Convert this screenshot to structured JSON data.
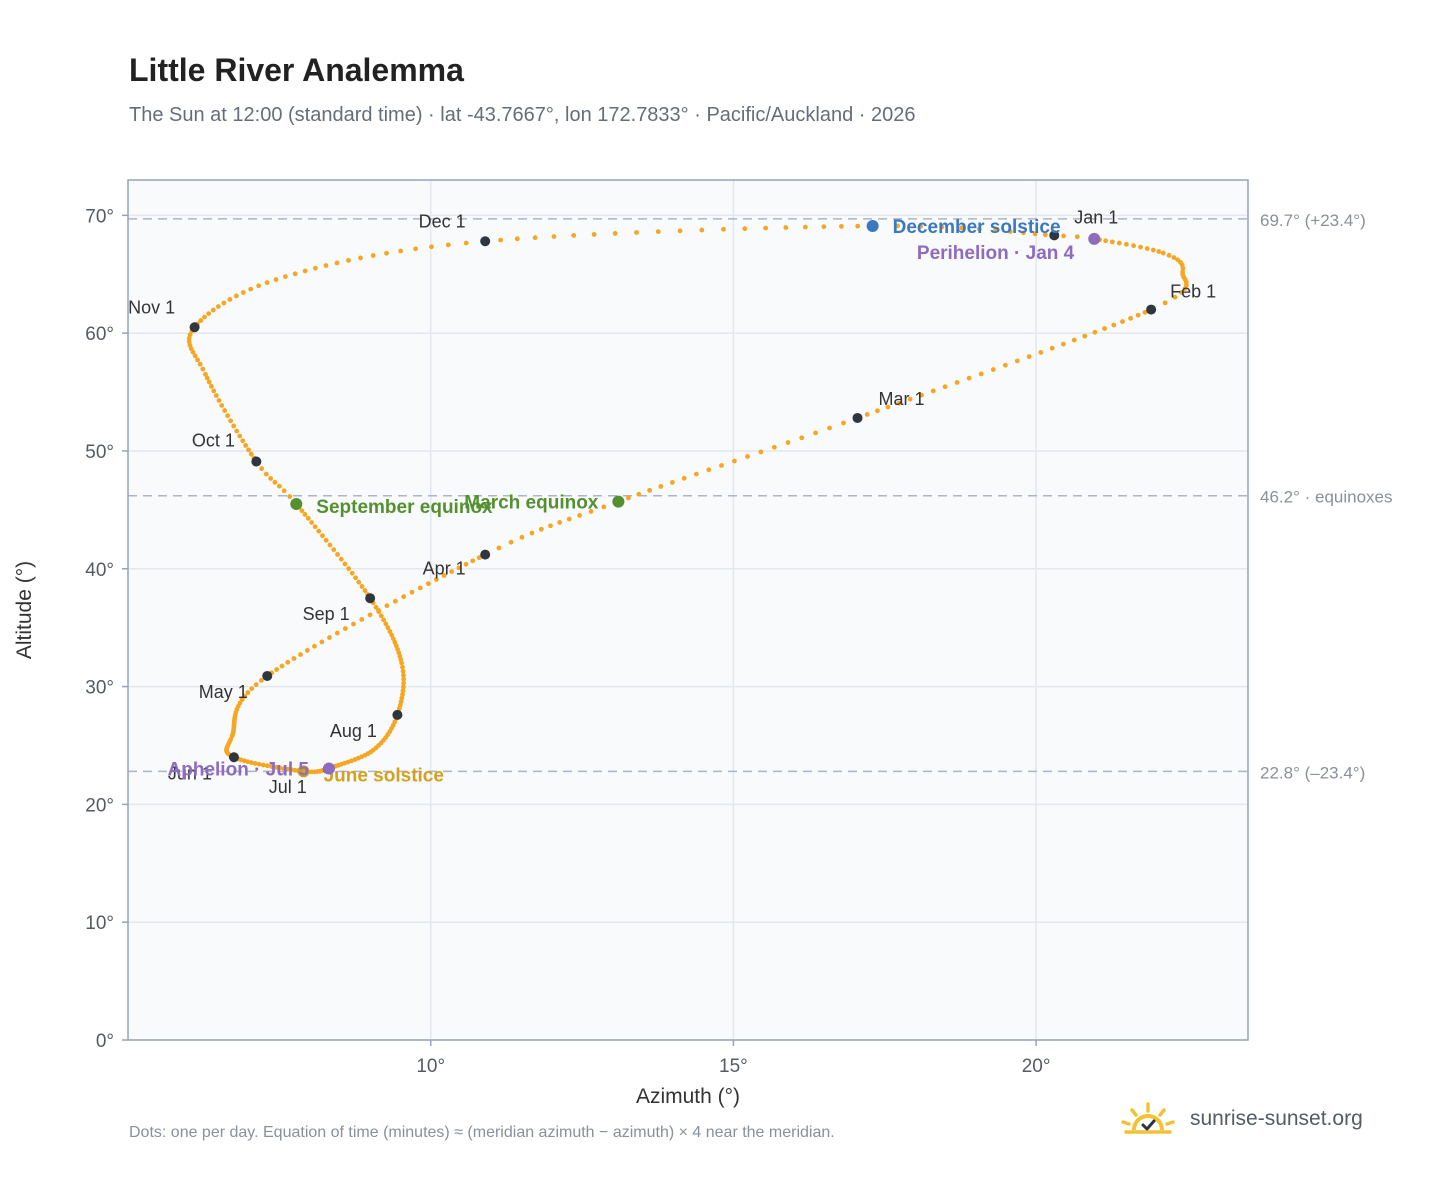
{
  "chart_data": {
    "type": "scatter",
    "title": "Little River Analemma",
    "subtitle": "The Sun at 12:00 (standard time) · lat -43.7667°, lon 172.7833° · Pacific/Auckland · 2026",
    "xlabel": "Azimuth (°)",
    "ylabel": "Altitude (°)",
    "xlim": [
      5.0,
      23.5
    ],
    "ylim": [
      0,
      73
    ],
    "x_ticks": [
      10,
      15,
      20
    ],
    "x_tick_labels": [
      "10°",
      "15°",
      "20°"
    ],
    "y_ticks": [
      0,
      10,
      20,
      30,
      40,
      50,
      60,
      70
    ],
    "y_tick_labels": [
      "0°",
      "10°",
      "20°",
      "30°",
      "40°",
      "50°",
      "60°",
      "70°"
    ],
    "grid": true,
    "reference_lines": [
      {
        "y": 69.7,
        "label": "69.7° (+23.4°)"
      },
      {
        "y": 46.2,
        "label": "46.2° · equinoxes"
      },
      {
        "y": 22.8,
        "label": "22.8° (–23.4°)"
      }
    ],
    "series_color": "#f5a623",
    "path_anchors": [
      {
        "day": 1,
        "x": 20.3,
        "y": 68.3
      },
      {
        "day": 4,
        "x": 20.96,
        "y": 68.0
      },
      {
        "day": 15,
        "x": 22.1,
        "y": 66.8
      },
      {
        "day": 22,
        "x": 22.42,
        "y": 65.2
      },
      {
        "day": 32,
        "x": 21.9,
        "y": 62.0
      },
      {
        "day": 60,
        "x": 17.05,
        "y": 52.8
      },
      {
        "day": 79,
        "x": 13.1,
        "y": 45.7
      },
      {
        "day": 91,
        "x": 10.9,
        "y": 41.2
      },
      {
        "day": 121,
        "x": 7.3,
        "y": 30.9
      },
      {
        "day": 141,
        "x": 6.72,
        "y": 25.8
      },
      {
        "day": 152,
        "x": 6.75,
        "y": 24.0
      },
      {
        "day": 172,
        "x": 7.9,
        "y": 22.8
      },
      {
        "day": 182,
        "x": 8.3,
        "y": 23.0
      },
      {
        "day": 186,
        "x": 8.32,
        "y": 23.05
      },
      {
        "day": 201,
        "x": 9.05,
        "y": 24.6
      },
      {
        "day": 213,
        "x": 9.45,
        "y": 27.6
      },
      {
        "day": 227,
        "x": 9.52,
        "y": 32.0
      },
      {
        "day": 244,
        "x": 9.0,
        "y": 37.5
      },
      {
        "day": 266,
        "x": 7.78,
        "y": 45.5
      },
      {
        "day": 274,
        "x": 7.12,
        "y": 49.1
      },
      {
        "day": 293,
        "x": 6.28,
        "y": 56.5
      },
      {
        "day": 305,
        "x": 6.1,
        "y": 60.5
      },
      {
        "day": 320,
        "x": 7.6,
        "y": 64.8
      },
      {
        "day": 335,
        "x": 10.9,
        "y": 67.8
      },
      {
        "day": 355,
        "x": 17.3,
        "y": 69.1
      },
      {
        "day": 366,
        "x": 20.3,
        "y": 68.3
      }
    ],
    "month_markers": [
      {
        "label": "Jan 1",
        "x": 20.3,
        "y": 68.3
      },
      {
        "label": "Feb 1",
        "x": 21.9,
        "y": 62.0
      },
      {
        "label": "Mar 1",
        "x": 17.05,
        "y": 52.8
      },
      {
        "label": "Apr 1",
        "x": 10.9,
        "y": 41.2
      },
      {
        "label": "May 1",
        "x": 7.3,
        "y": 30.9
      },
      {
        "label": "Jun 1",
        "x": 6.75,
        "y": 24.0
      },
      {
        "label": "Jul 1",
        "x": 8.3,
        "y": 23.0
      },
      {
        "label": "Aug 1",
        "x": 9.45,
        "y": 27.6
      },
      {
        "label": "Sep 1",
        "x": 9.0,
        "y": 37.5
      },
      {
        "label": "Oct 1",
        "x": 7.12,
        "y": 49.1
      },
      {
        "label": "Nov 1",
        "x": 6.1,
        "y": 60.5
      },
      {
        "label": "Dec 1",
        "x": 10.9,
        "y": 67.8
      }
    ],
    "events": [
      {
        "label": "December solstice",
        "x": 17.3,
        "y": 69.1,
        "color": "#3a78c2"
      },
      {
        "label": "Perihelion · Jan 4",
        "x": 20.96,
        "y": 68.0,
        "color": "#8e6bbf"
      },
      {
        "label": "March equinox",
        "x": 13.1,
        "y": 45.7,
        "color": "#559030"
      },
      {
        "label": "September equinox",
        "x": 7.78,
        "y": 45.5,
        "color": "#559030"
      },
      {
        "label": "June solstice",
        "x": 7.9,
        "y": 22.8,
        "color": "#d4a020"
      },
      {
        "label": "Aphelion · Jul 5",
        "x": 8.32,
        "y": 23.05,
        "color": "#8e6bbf"
      }
    ]
  },
  "footnote": "Dots: one per day. Equation of time (minutes) ≈ (meridian azimuth − azimuth) × 4 near the meridian.",
  "brand": {
    "name": "sunrise-sunset.org",
    "logo_icon": "sun-logo-icon",
    "logo_color": "#f2c232"
  }
}
